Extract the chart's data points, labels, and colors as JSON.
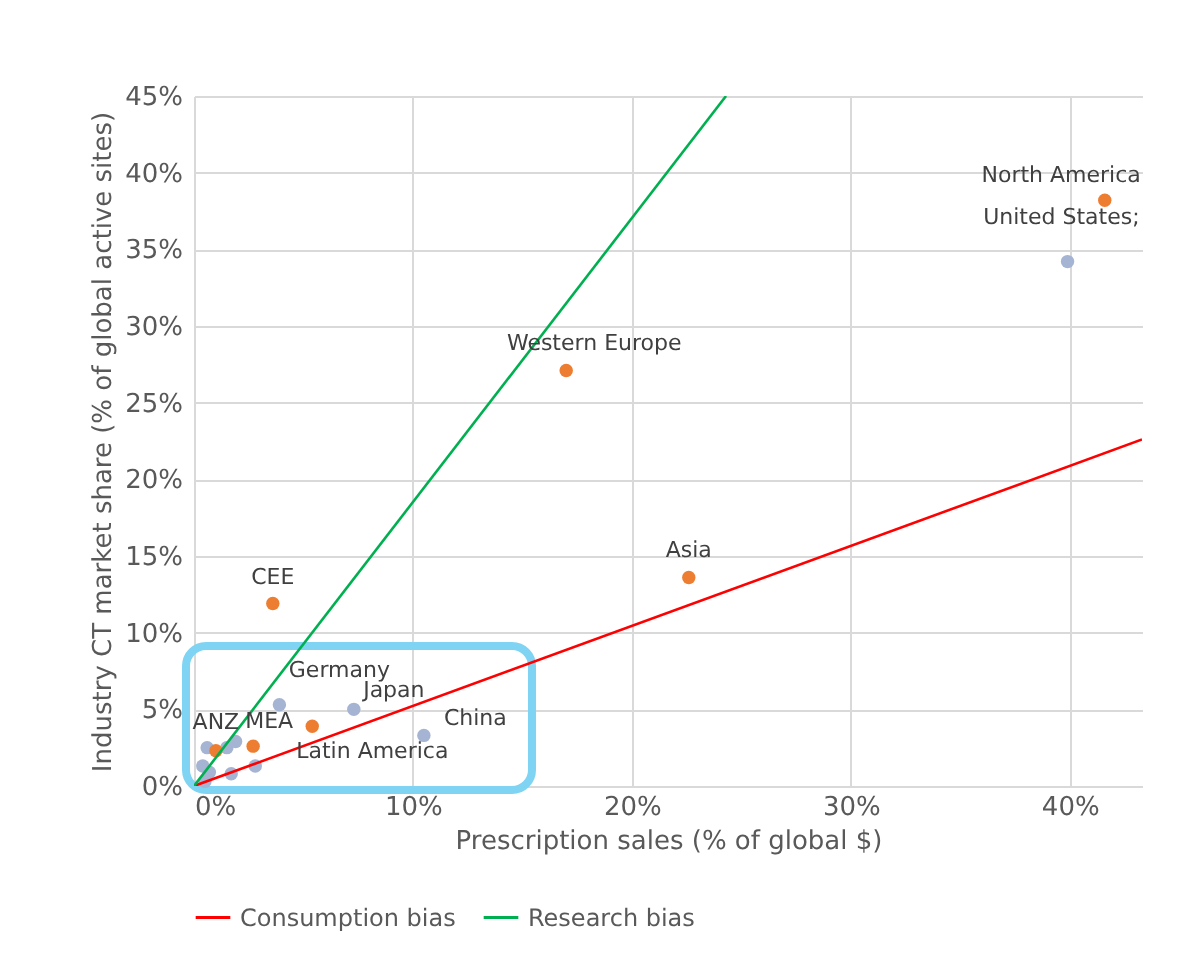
{
  "chart_data": {
    "type": "scatter",
    "xlabel": "Prescription sales (% of global $)",
    "ylabel": "Industry CT market share (% of global active sites)",
    "xlim": [
      0,
      43.3
    ],
    "ylim": [
      0,
      45
    ],
    "xticks": [
      {
        "value": 0,
        "label": "0%"
      },
      {
        "value": 10,
        "label": "10%"
      },
      {
        "value": 20,
        "label": "20%"
      },
      {
        "value": 30,
        "label": "30%"
      },
      {
        "value": 40,
        "label": "40%"
      }
    ],
    "yticks": [
      {
        "value": 0,
        "label": "0%"
      },
      {
        "value": 5,
        "label": "5%"
      },
      {
        "value": 10,
        "label": "10%"
      },
      {
        "value": 15,
        "label": "15%"
      },
      {
        "value": 20,
        "label": "20%"
      },
      {
        "value": 25,
        "label": "25%"
      },
      {
        "value": 30,
        "label": "30%"
      },
      {
        "value": 35,
        "label": "35%"
      },
      {
        "value": 40,
        "label": "40%"
      },
      {
        "value": 45,
        "label": "45%"
      }
    ],
    "grid": true,
    "legend": "bottom",
    "series": [
      {
        "marker": "circle",
        "color": "#a5b4d2",
        "x": [
          39.9,
          3.9,
          7.3,
          10.5,
          2.8,
          1.7,
          0.6,
          0.4,
          0.5,
          1.9,
          1.5,
          0.7
        ],
        "values": [
          34.2,
          5.3,
          5.0,
          3.3,
          1.3,
          0.8,
          2.5,
          1.3,
          0.3,
          2.9,
          2.5,
          0.9
        ]
      },
      {
        "marker": "circle",
        "color": "#ed7d31",
        "x": [
          41.6,
          17.0,
          22.6,
          3.6,
          1.0,
          2.7,
          5.4
        ],
        "values": [
          38.2,
          27.1,
          13.6,
          11.9,
          2.3,
          2.6,
          3.9
        ]
      },
      {
        "type": "line",
        "marker": "none",
        "line_style": "solid",
        "name": "Consumption bias",
        "color": "#ff0000",
        "x": [
          0,
          43.3
        ],
        "values": [
          0,
          22.6
        ]
      },
      {
        "type": "line",
        "marker": "none",
        "line_style": "solid",
        "name": "Research bias",
        "color": "#00b050",
        "x": [
          0,
          24.3
        ],
        "values": [
          0,
          45
        ]
      }
    ],
    "annotations": [
      {
        "text": "North America",
        "x": 41.6,
        "y": 38.2
      },
      {
        "text": "United States;",
        "x": 39.9,
        "y": 34.2
      },
      {
        "text": "Western Europe",
        "x": 17.0,
        "y": 27.1
      },
      {
        "text": "Asia",
        "x": 22.6,
        "y": 13.6
      },
      {
        "text": "CEE",
        "x": 3.6,
        "y": 11.9
      },
      {
        "text": "Germany",
        "x": 3.9,
        "y": 5.3
      },
      {
        "text": "Japan",
        "x": 7.3,
        "y": 5.0
      },
      {
        "text": "China",
        "x": 10.5,
        "y": 3.3
      },
      {
        "text": "ANZ",
        "x": 1.0,
        "y": 2.3
      },
      {
        "text": "MEA",
        "x": 2.7,
        "y": 2.6
      },
      {
        "text": "Latin America",
        "x": 5.4,
        "y": 3.9
      }
    ]
  }
}
